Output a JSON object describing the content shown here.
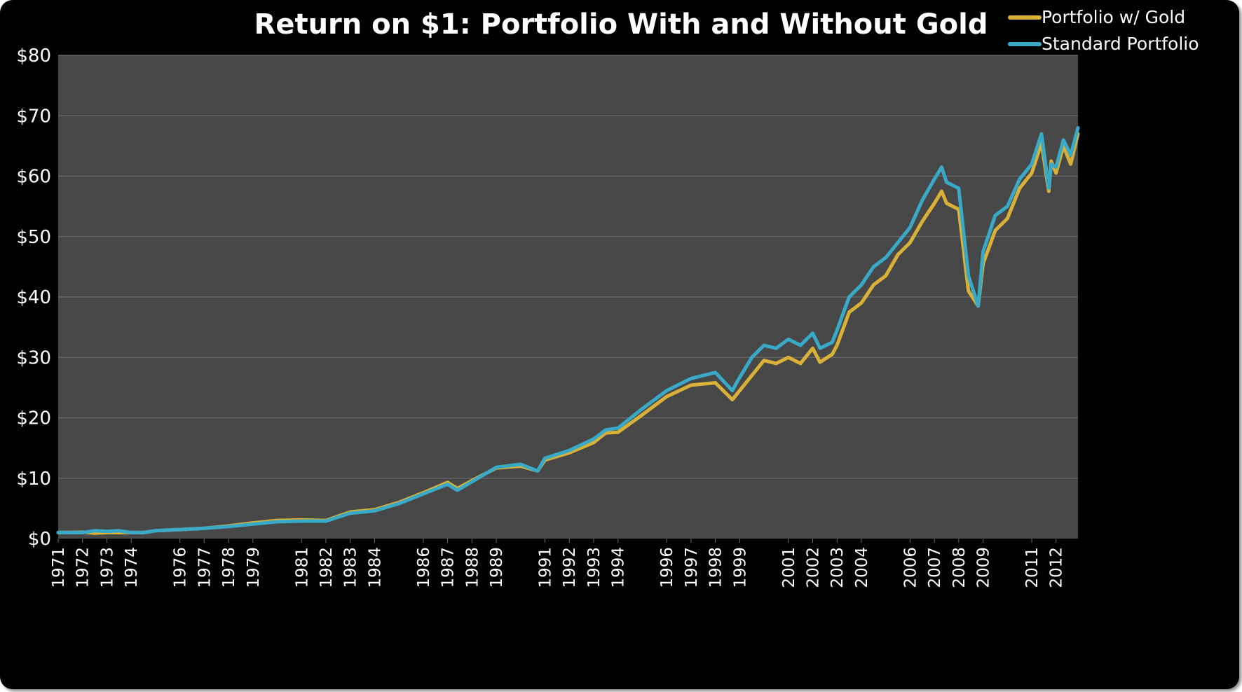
{
  "chart_data": {
    "type": "line",
    "title": "Return on $1: Portfolio With and Without Gold",
    "xlabel": "",
    "ylabel": "",
    "ylim": [
      0,
      80
    ],
    "y_ticks": [
      0,
      10,
      20,
      30,
      40,
      50,
      60,
      70,
      80
    ],
    "y_tick_labels": [
      "$0",
      "$10",
      "$20",
      "$30",
      "$40",
      "$50",
      "$60",
      "$70",
      "$80"
    ],
    "x_range": [
      1971,
      2012.9
    ],
    "x_ticks": [
      1971,
      1972,
      1973,
      1974,
      1976,
      1977,
      1978,
      1979,
      1981,
      1982,
      1983,
      1984,
      1986,
      1987,
      1988,
      1989,
      1991,
      1992,
      1993,
      1994,
      1996,
      1997,
      1998,
      1999,
      2001,
      2002,
      2003,
      2004,
      2006,
      2007,
      2008,
      2009,
      2011,
      2012
    ],
    "grid": true,
    "legend_position": "top-right",
    "colors": {
      "background": "#000000",
      "plot_area": "#474747",
      "grid": "#6b6b6b",
      "text": "#ffffff"
    },
    "series": [
      {
        "name": "Portfolio w/ Gold",
        "color": "#d9b038",
        "x": [
          1971,
          1972,
          1972.5,
          1973,
          1973.5,
          1974,
          1974.5,
          1975,
          1976,
          1977,
          1978,
          1979,
          1980,
          1981,
          1982,
          1983,
          1984,
          1985,
          1986,
          1987,
          1987.4,
          1988,
          1989,
          1990,
          1990.7,
          1991,
          1992,
          1993,
          1993.5,
          1994,
          1995,
          1996,
          1997,
          1998,
          1998.7,
          1998.9,
          1999.5,
          2000,
          2000.5,
          2001,
          2001.5,
          2002,
          2002.3,
          2002.8,
          2003,
          2003.5,
          2004,
          2004.5,
          2005,
          2005.5,
          2006,
          2006.5,
          2007,
          2007.3,
          2007.5,
          2008,
          2008.4,
          2008.8,
          2009,
          2009.5,
          2010,
          2010.5,
          2011,
          2011.4,
          2011.7,
          2011.8,
          2012,
          2012.3,
          2012.6,
          2012.9
        ],
        "values": [
          1.0,
          1.05,
          0.9,
          1.0,
          1.0,
          1.0,
          1.0,
          1.3,
          1.5,
          1.7,
          2.1,
          2.6,
          3.0,
          3.1,
          3.0,
          4.4,
          4.8,
          6.0,
          7.6,
          9.3,
          8.3,
          9.6,
          11.7,
          12.0,
          11.2,
          13.0,
          14.2,
          15.9,
          17.5,
          17.6,
          20.5,
          23.5,
          25.4,
          25.8,
          23.0,
          24.0,
          27.0,
          29.5,
          29.0,
          30.0,
          29.0,
          31.5,
          29.2,
          30.5,
          32.0,
          37.5,
          39.0,
          42.0,
          43.5,
          47.0,
          49.0,
          52.5,
          55.5,
          57.5,
          55.5,
          54.5,
          41.0,
          38.5,
          45.5,
          51.0,
          53.0,
          58.0,
          60.5,
          65.5,
          57.5,
          62.5,
          60.5,
          65.0,
          62.0,
          67.0
        ]
      },
      {
        "name": "Standard Portfolio",
        "color": "#39a9c8",
        "x": [
          1971,
          1972,
          1972.5,
          1973,
          1973.5,
          1974,
          1974.5,
          1975,
          1976,
          1977,
          1978,
          1979,
          1980,
          1981,
          1982,
          1983,
          1984,
          1985,
          1986,
          1987,
          1987.4,
          1988,
          1989,
          1990,
          1990.7,
          1991,
          1992,
          1993,
          1993.5,
          1994,
          1995,
          1996,
          1997,
          1998,
          1998.7,
          1998.9,
          1999.5,
          2000,
          2000.5,
          2001,
          2001.5,
          2002,
          2002.3,
          2002.8,
          2003,
          2003.5,
          2004,
          2004.5,
          2005,
          2005.5,
          2006,
          2006.5,
          2007,
          2007.3,
          2007.5,
          2008,
          2008.4,
          2008.8,
          2009,
          2009.5,
          2010,
          2010.5,
          2011,
          2011.4,
          2011.7,
          2011.8,
          2012,
          2012.3,
          2012.6,
          2012.9
        ],
        "values": [
          1.0,
          1.0,
          1.3,
          1.2,
          1.3,
          1.0,
          1.0,
          1.3,
          1.5,
          1.7,
          2.0,
          2.4,
          2.8,
          2.9,
          2.9,
          4.2,
          4.6,
          5.8,
          7.4,
          9.0,
          8.0,
          9.4,
          11.8,
          12.3,
          11.2,
          13.3,
          14.6,
          16.5,
          18.0,
          18.3,
          21.5,
          24.5,
          26.5,
          27.5,
          24.5,
          26.0,
          30.0,
          32.0,
          31.5,
          33.0,
          32.0,
          34.0,
          31.5,
          32.5,
          34.5,
          40.0,
          42.0,
          45.0,
          46.5,
          49.0,
          51.5,
          56.0,
          59.5,
          61.5,
          59.0,
          58.0,
          43.5,
          38.5,
          47.5,
          53.5,
          55.0,
          59.5,
          62.0,
          67.0,
          58.0,
          62.0,
          61.5,
          66.0,
          63.5,
          68.0
        ]
      }
    ]
  }
}
